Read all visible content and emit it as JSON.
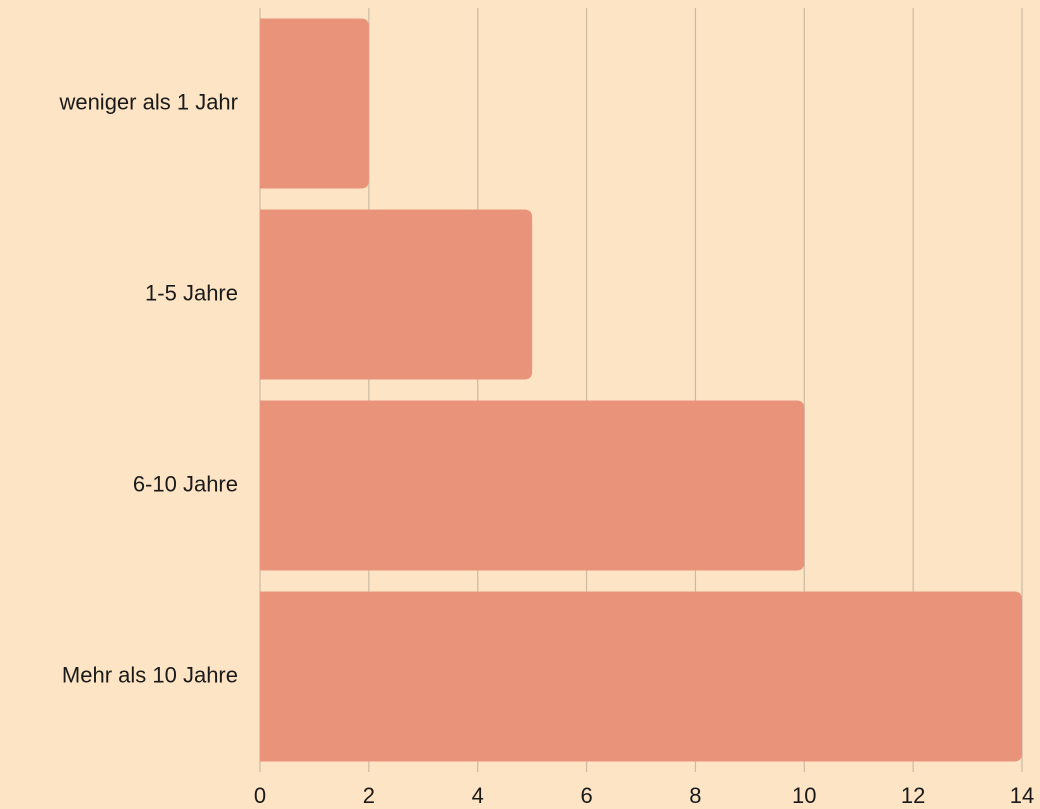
{
  "chart_data": {
    "type": "bar",
    "orientation": "horizontal",
    "categories": [
      "weniger als 1 Jahr",
      "1-5 Jahre",
      "6-10 Jahre",
      "Mehr als 10 Jahre"
    ],
    "values": [
      2,
      5,
      10,
      14
    ],
    "color": "#ea937b",
    "xlim": [
      0,
      14
    ],
    "xticks": [
      0,
      2,
      4,
      6,
      8,
      10,
      12,
      14
    ],
    "grid": true
  }
}
